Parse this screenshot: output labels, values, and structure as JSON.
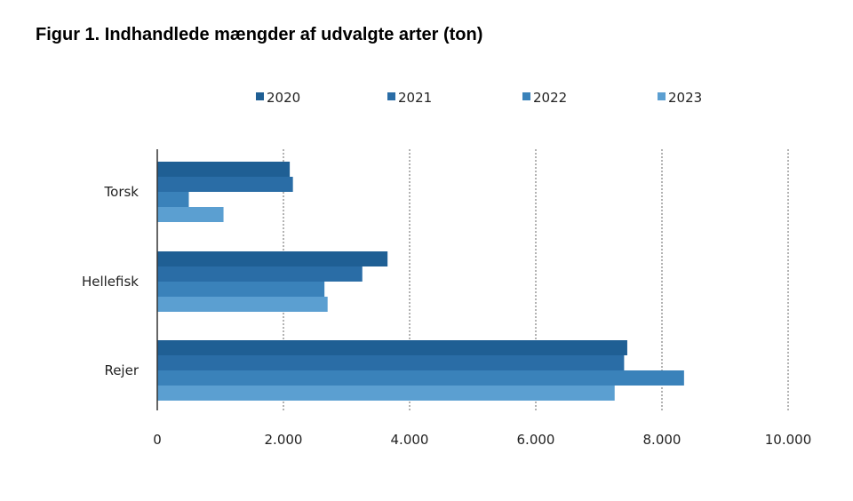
{
  "chart_data": {
    "type": "bar",
    "orientation": "horizontal",
    "title": "Figur 1. Indhandlede mængder af udvalgte arter (ton)",
    "xlabel": "",
    "ylabel": "",
    "categories": [
      "Torsk",
      "Hellefisk",
      "Rejer"
    ],
    "series": [
      {
        "name": "2020",
        "values": [
          2100,
          3650,
          7450
        ],
        "color": "#1f5f94"
      },
      {
        "name": "2021",
        "values": [
          2150,
          3250,
          7400
        ],
        "color": "#2a6da6"
      },
      {
        "name": "2022",
        "values": [
          500,
          2650,
          8350
        ],
        "color": "#3a82ba"
      },
      {
        "name": "2023",
        "values": [
          1050,
          2700,
          7250
        ],
        "color": "#5b9fd1"
      }
    ],
    "xlim": [
      0,
      10000
    ],
    "xticks": [
      0,
      2000,
      4000,
      6000,
      8000,
      10000
    ],
    "xtick_labels": [
      "0",
      "2.000",
      "4.000",
      "6.000",
      "8.000",
      "10.000"
    ],
    "grid": "vertical dashed",
    "legend_position": "top"
  }
}
